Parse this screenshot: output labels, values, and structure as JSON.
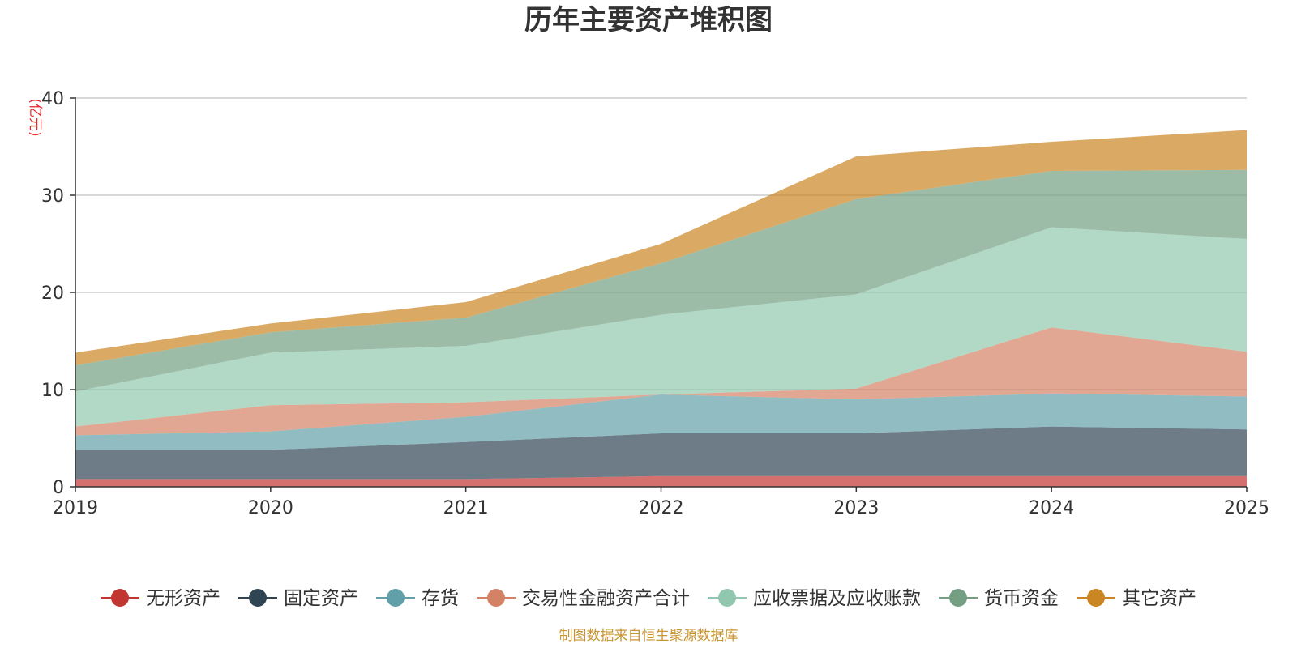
{
  "chart_data": {
    "type": "area",
    "stacked": true,
    "title": "历年主要资产堆积图",
    "ylabel": "(亿元)",
    "xlabel": "",
    "ylim": [
      0,
      40
    ],
    "yticks": [
      0,
      10,
      20,
      30,
      40
    ],
    "categories": [
      "2019",
      "2020",
      "2021",
      "2022",
      "2023",
      "2024",
      "2025"
    ],
    "grid": true,
    "legend_position": "bottom",
    "series": [
      {
        "name": "无形资产",
        "color": "#c23531",
        "values": [
          0.8,
          0.8,
          0.8,
          1.1,
          1.1,
          1.1,
          1.1
        ]
      },
      {
        "name": "固定资产",
        "color": "#2f4554",
        "values": [
          3.0,
          3.0,
          3.8,
          4.4,
          4.4,
          5.1,
          4.8
        ]
      },
      {
        "name": "存货",
        "color": "#61a0a8",
        "values": [
          1.5,
          1.9,
          2.6,
          4.0,
          3.5,
          3.4,
          3.4
        ]
      },
      {
        "name": "交易性金融资产合计",
        "color": "#d48265",
        "values": [
          0.9,
          2.7,
          1.5,
          0.0,
          1.1,
          6.8,
          4.6
        ]
      },
      {
        "name": "应收票据及应收账款",
        "color": "#91c7ae",
        "values": [
          3.6,
          5.4,
          5.8,
          8.2,
          9.7,
          10.3,
          11.6
        ]
      },
      {
        "name": "货币资金",
        "color": "#749f83",
        "values": [
          2.7,
          2.1,
          2.9,
          5.3,
          9.8,
          5.8,
          7.1
        ]
      },
      {
        "name": "其它资产",
        "color": "#ca8622",
        "values": [
          1.3,
          0.9,
          1.6,
          2.0,
          4.4,
          3.0,
          4.1
        ]
      }
    ]
  },
  "footer": {
    "source": "制图数据来自恒生聚源数据库"
  }
}
